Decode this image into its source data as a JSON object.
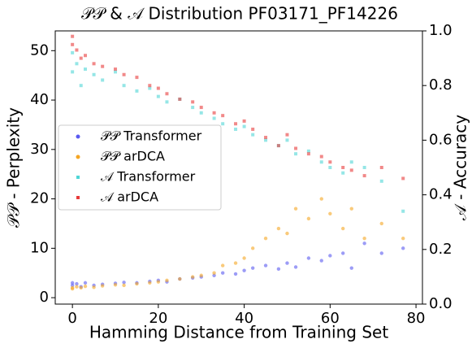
{
  "chart_data": {
    "type": "scatter",
    "title": "𝒫𝒫 & 𝒜 Distribution PF03171_PF14226",
    "x_label": "Hamming Distance from Training Set",
    "y_label": "𝒫𝒫 - Perplexity",
    "y2_label": "𝒜 - Accuracy",
    "xlim": [
      -4,
      81.5
    ],
    "ylim": [
      -1.3,
      54
    ],
    "y2lim": [
      0,
      1
    ],
    "xticks": [
      0,
      20,
      40,
      60,
      80
    ],
    "yticks": [
      0,
      10,
      20,
      30,
      40,
      50
    ],
    "y2ticks": [
      {
        "value": 0,
        "label": "0.0"
      },
      0.2,
      0.4,
      0.6,
      0.8,
      {
        "value": 1,
        "label": "1.0"
      }
    ],
    "legend": "center left",
    "series": [
      {
        "name": "𝒫𝒫 Transformer",
        "color": "#5a5af0",
        "marker": "circle",
        "x": [
          0,
          0,
          1,
          2,
          3,
          5,
          7,
          10,
          12,
          15,
          18,
          20,
          22,
          25,
          28,
          30,
          33,
          35,
          38,
          40,
          42,
          45,
          48,
          50,
          52,
          55,
          58,
          60,
          63,
          65,
          68,
          72,
          77
        ],
        "values": [
          3,
          2.5,
          2.8,
          2.2,
          3,
          2.5,
          2.7,
          2.9,
          3.1,
          3.0,
          3.3,
          3.5,
          3.2,
          3.8,
          4.0,
          4.2,
          4.5,
          5.0,
          4.8,
          5.5,
          6.0,
          6.5,
          5.8,
          7.0,
          6.2,
          8.0,
          7.5,
          8.5,
          9.0,
          6.0,
          11.0,
          9.0,
          10.0
        ]
      },
      {
        "name": "𝒫𝒫 arDCA",
        "color": "#f5a623",
        "marker": "circle",
        "x": [
          0,
          0,
          1,
          2,
          3,
          5,
          7,
          10,
          12,
          15,
          18,
          20,
          22,
          25,
          28,
          30,
          33,
          35,
          38,
          40,
          42,
          45,
          48,
          50,
          52,
          55,
          58,
          60,
          63,
          65,
          68,
          72,
          77
        ],
        "values": [
          2.0,
          1.8,
          2.2,
          2.0,
          2.3,
          2.1,
          2.4,
          2.6,
          2.5,
          2.8,
          3.0,
          3.2,
          3.5,
          3.8,
          4.2,
          4.5,
          5.0,
          6.5,
          7.0,
          8.0,
          10.0,
          12.0,
          14.0,
          13.0,
          18.0,
          16.0,
          20.0,
          17.0,
          14.0,
          18.0,
          12.0,
          15.0,
          12.0
        ]
      },
      {
        "name": "𝒜 Transformer",
        "color": "#4fd6d6",
        "marker": "square",
        "axis": "y2",
        "x": [
          0,
          0,
          1,
          2,
          3,
          5,
          7,
          10,
          12,
          15,
          18,
          20,
          22,
          25,
          28,
          30,
          33,
          35,
          38,
          40,
          42,
          45,
          48,
          50,
          52,
          55,
          58,
          60,
          63,
          65,
          68,
          72,
          77
        ],
        "values": [
          0.92,
          0.85,
          0.88,
          0.8,
          0.86,
          0.84,
          0.82,
          0.85,
          0.8,
          0.78,
          0.79,
          0.76,
          0.74,
          0.75,
          0.72,
          0.7,
          0.68,
          0.66,
          0.64,
          0.65,
          0.62,
          0.6,
          0.58,
          0.6,
          0.55,
          0.56,
          0.52,
          0.5,
          0.48,
          0.52,
          0.5,
          0.45,
          0.34
        ]
      },
      {
        "name": "𝒜 arDCA",
        "color": "#e83a3a",
        "marker": "square",
        "axis": "y2",
        "x": [
          0,
          0,
          1,
          2,
          3,
          5,
          7,
          10,
          12,
          15,
          18,
          20,
          22,
          25,
          28,
          30,
          33,
          35,
          38,
          40,
          42,
          45,
          48,
          50,
          52,
          55,
          58,
          60,
          63,
          65,
          68,
          72,
          77
        ],
        "values": [
          0.98,
          0.95,
          0.93,
          0.9,
          0.91,
          0.88,
          0.87,
          0.86,
          0.84,
          0.83,
          0.8,
          0.79,
          0.77,
          0.75,
          0.74,
          0.72,
          0.7,
          0.69,
          0.66,
          0.67,
          0.64,
          0.61,
          0.58,
          0.62,
          0.57,
          0.55,
          0.54,
          0.52,
          0.5,
          0.49,
          0.47,
          0.5,
          0.46
        ]
      }
    ]
  }
}
